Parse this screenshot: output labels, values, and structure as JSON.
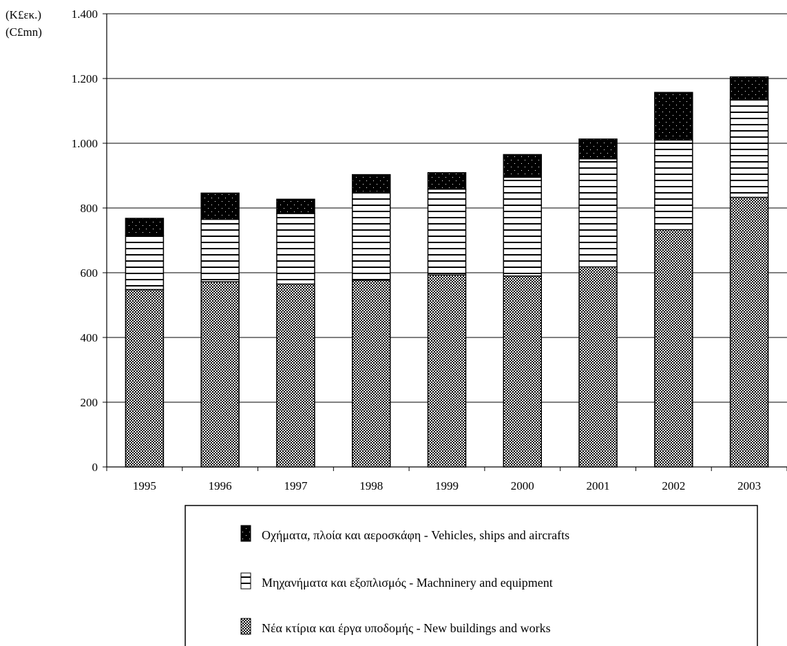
{
  "chart_data": {
    "type": "bar",
    "stacked": true,
    "y_unit_labels": [
      "(K£εκ.)",
      "(C£mn)"
    ],
    "categories": [
      "1995",
      "1996",
      "1997",
      "1998",
      "1999",
      "2000",
      "2001",
      "2002",
      "2003"
    ],
    "series": [
      {
        "name": "Νέα κτίρια και έργα υποδομής - New buildings and works",
        "pattern": "checker",
        "values": [
          548,
          572,
          565,
          577,
          593,
          590,
          618,
          733,
          833
        ]
      },
      {
        "name": "Μηχανήματα και εξοπλισμός - Machninery and equipment",
        "pattern": "hstripes",
        "values": [
          167,
          193,
          218,
          273,
          265,
          305,
          334,
          277,
          302
        ]
      },
      {
        "name": "Οχήματα, πλοία και αεροσκάφη - Vehicles, ships and aircrafts",
        "pattern": "dotted-black",
        "values": [
          53,
          81,
          44,
          53,
          51,
          70,
          61,
          147,
          70
        ]
      }
    ],
    "legend_order": [
      2,
      1,
      0
    ],
    "legend_position": "bottom",
    "ylim": [
      0,
      1400
    ],
    "yticks": [
      0,
      200,
      400,
      600,
      800,
      1000,
      1200,
      1400
    ],
    "ytick_labels": [
      "0",
      "200",
      "400",
      "600",
      "800",
      "1.000",
      "1.200",
      "1.400"
    ],
    "grid": true
  }
}
